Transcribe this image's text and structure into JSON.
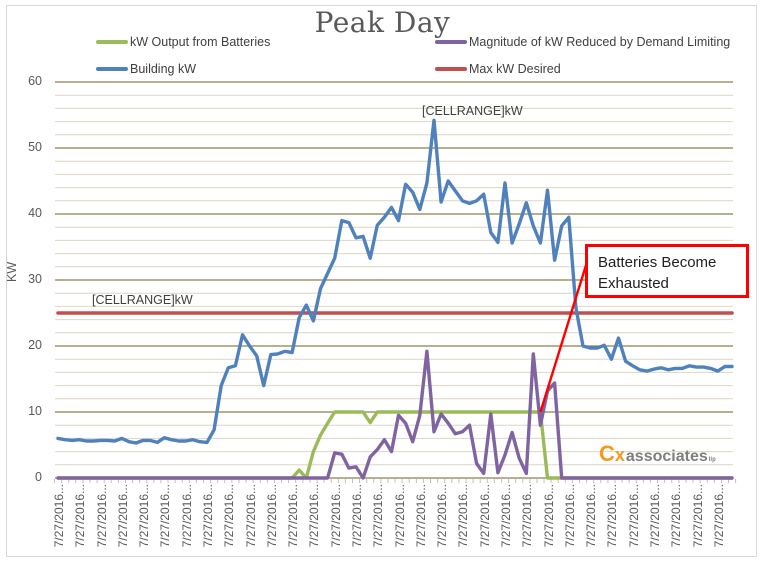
{
  "chart_data": {
    "type": "line",
    "title": "Peak Day",
    "xlabel": "",
    "ylabel": "KW",
    "ylim": [
      0,
      60
    ],
    "yticks": [
      0,
      10,
      20,
      30,
      40,
      50,
      60
    ],
    "grid": {
      "major": true,
      "minor": true,
      "minor_step": 2
    },
    "legend_position": "top",
    "x_tick_label": "7/27/2016...",
    "x_label_count": 32,
    "point_count": 96,
    "series": [
      {
        "name": "kW Output from Batteries",
        "color": "#9bbb59",
        "values": [
          0,
          0,
          0,
          0,
          0,
          0,
          0,
          0,
          0,
          0,
          0,
          0,
          0,
          0,
          0,
          0,
          0,
          0,
          0,
          0,
          0,
          0,
          0,
          0,
          0,
          0,
          0,
          0,
          0,
          0,
          0,
          0,
          0,
          0,
          1.2,
          0,
          4,
          6.5,
          8.3,
          10,
          10,
          10,
          10,
          10,
          8.4,
          10,
          10,
          10,
          10,
          10,
          10,
          10,
          10,
          10,
          10,
          10,
          10,
          10,
          10,
          10,
          10,
          10,
          10,
          10,
          10,
          10,
          10,
          10,
          10,
          0,
          0,
          0,
          0,
          0,
          0,
          0,
          0,
          0,
          0,
          0,
          0,
          0,
          0,
          0,
          0,
          0,
          0,
          0,
          0,
          0,
          0,
          0,
          0,
          0,
          0,
          0
        ]
      },
      {
        "name": "Magnitude of kW Reduced by Demand Limiting",
        "color": "#8064a2",
        "values": [
          0,
          0,
          0,
          0,
          0,
          0,
          0,
          0,
          0,
          0,
          0,
          0,
          0,
          0,
          0,
          0,
          0,
          0,
          0,
          0,
          0,
          0,
          0,
          0,
          0,
          0,
          0,
          0,
          0,
          0,
          0,
          0,
          0,
          0,
          0,
          0,
          0,
          0,
          0,
          3.8,
          3.6,
          1.5,
          1.7,
          0,
          3.2,
          4.3,
          5.8,
          4,
          9.5,
          8.3,
          5.5,
          9.5,
          19.2,
          7,
          9.7,
          8.3,
          6.7,
          7,
          8,
          2.2,
          0.7,
          9.7,
          0.8,
          3.5,
          6.9,
          3,
          0.7,
          18.8,
          8,
          13.2,
          14.4,
          0,
          0,
          0,
          0,
          0,
          0,
          0,
          0,
          0,
          0,
          0,
          0,
          0,
          0,
          0,
          0,
          0,
          0,
          0,
          0,
          0,
          0,
          0,
          0,
          0
        ]
      },
      {
        "name": "Building kW",
        "color": "#4f81bd",
        "values": [
          6,
          5.8,
          5.7,
          5.8,
          5.6,
          5.6,
          5.7,
          5.7,
          5.6,
          6,
          5.5,
          5.3,
          5.7,
          5.7,
          5.4,
          6.1,
          5.8,
          5.6,
          5.6,
          5.8,
          5.5,
          5.4,
          7.3,
          14,
          16.7,
          17,
          21.7,
          20,
          18.5,
          14,
          18.7,
          18.8,
          19.2,
          19,
          24.3,
          26.2,
          23.8,
          28.7,
          31,
          33.3,
          39,
          38.7,
          36.4,
          36.6,
          33.3,
          38.3,
          39.5,
          41,
          39,
          44.5,
          43.3,
          40.7,
          44.7,
          54.2,
          41.8,
          45,
          43.5,
          42,
          41.6,
          42,
          43,
          37.2,
          35.7,
          44.7,
          35.6,
          38.5,
          41.7,
          38.2,
          35.6,
          43.6,
          33,
          38.2,
          39.5,
          25.8,
          20,
          19.7,
          19.7,
          20.1,
          18,
          21.2,
          17.7,
          17,
          16.4,
          16.2,
          16.5,
          16.7,
          16.4,
          16.6,
          16.6,
          17,
          16.8,
          16.8,
          16.6,
          16.2,
          16.9,
          16.9
        ]
      },
      {
        "name": "Max kW Desired",
        "color": "#c0504d",
        "values_constant": 25
      }
    ],
    "annotations": [
      {
        "text": "[CELLRANGE]kW",
        "attached_to": "Building kW",
        "at_point": 53
      },
      {
        "text": "[CELLRANGE]kW",
        "attached_to": "Max kW Desired",
        "at_point": 5
      },
      {
        "text": "Batteries Become Exhausted",
        "type": "callout",
        "points_to": {
          "point": 68,
          "value": 10
        }
      }
    ]
  },
  "legend": {
    "items": [
      {
        "label": "kW Output from Batteries",
        "color": "#9bbb59"
      },
      {
        "label": "Magnitude of kW Reduced by Demand Limiting",
        "color": "#8064a2"
      },
      {
        "label": "Building kW",
        "color": "#4f81bd"
      },
      {
        "label": "Max kW Desired",
        "color": "#c0504d"
      }
    ]
  },
  "axis": {
    "ylabel": "KW",
    "yticks": [
      "0",
      "10",
      "20",
      "30",
      "40",
      "50",
      "60"
    ],
    "xtick": "7/27/2016..."
  },
  "labels": {
    "peak": "[CELLRANGE]kW",
    "max": "[CELLRANGE]kW",
    "callout_line1": "Batteries Become",
    "callout_line2": "Exhausted"
  },
  "logo": {
    "c": "C",
    "x": "x",
    "rest": "associates",
    "suffix": "llp"
  }
}
